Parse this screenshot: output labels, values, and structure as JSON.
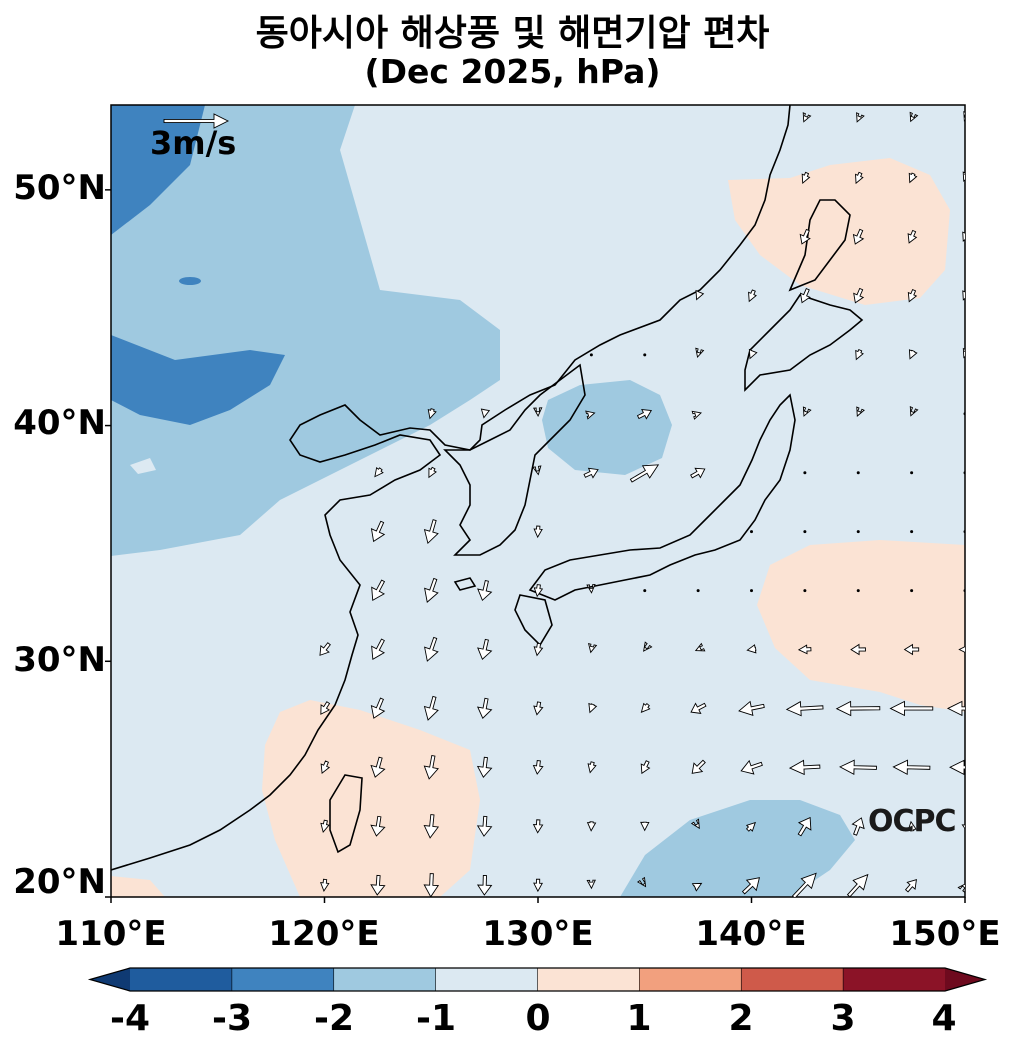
{
  "title": {
    "line1": "동아시아 해상풍 및 해면기압 편차",
    "line2": "(Dec 2025, hPa)"
  },
  "map": {
    "lon_range": [
      110,
      150
    ],
    "lat_range": [
      20,
      53.6
    ],
    "lat_ticks": [
      "20°N",
      "30°N",
      "40°N",
      "50°N"
    ],
    "lon_ticks": [
      "110°E",
      "120°E",
      "130°E",
      "140°E",
      "150°E"
    ],
    "reference_vector": {
      "label": "3m/s",
      "speed_ms": 3
    },
    "logo": "OCPC"
  },
  "colorbar": {
    "levels": [
      -4,
      -3,
      -2,
      -1,
      0,
      1,
      2,
      3,
      4
    ],
    "labels": [
      "-4",
      "-3",
      "-2",
      "-1",
      "0",
      "1",
      "2",
      "3",
      "4"
    ],
    "colors": [
      "#1f5c9e",
      "#3f83bf",
      "#9fc9e0",
      "#dce9f2",
      "#fbe3d4",
      "#f2a07e",
      "#cf5a4a",
      "#8b1327"
    ],
    "extend_colors": {
      "low": "#0f3a73",
      "high": "#6e0a1e"
    }
  },
  "colors": {
    "background_anomaly": "#dce9f2",
    "coast": "#000000"
  }
}
